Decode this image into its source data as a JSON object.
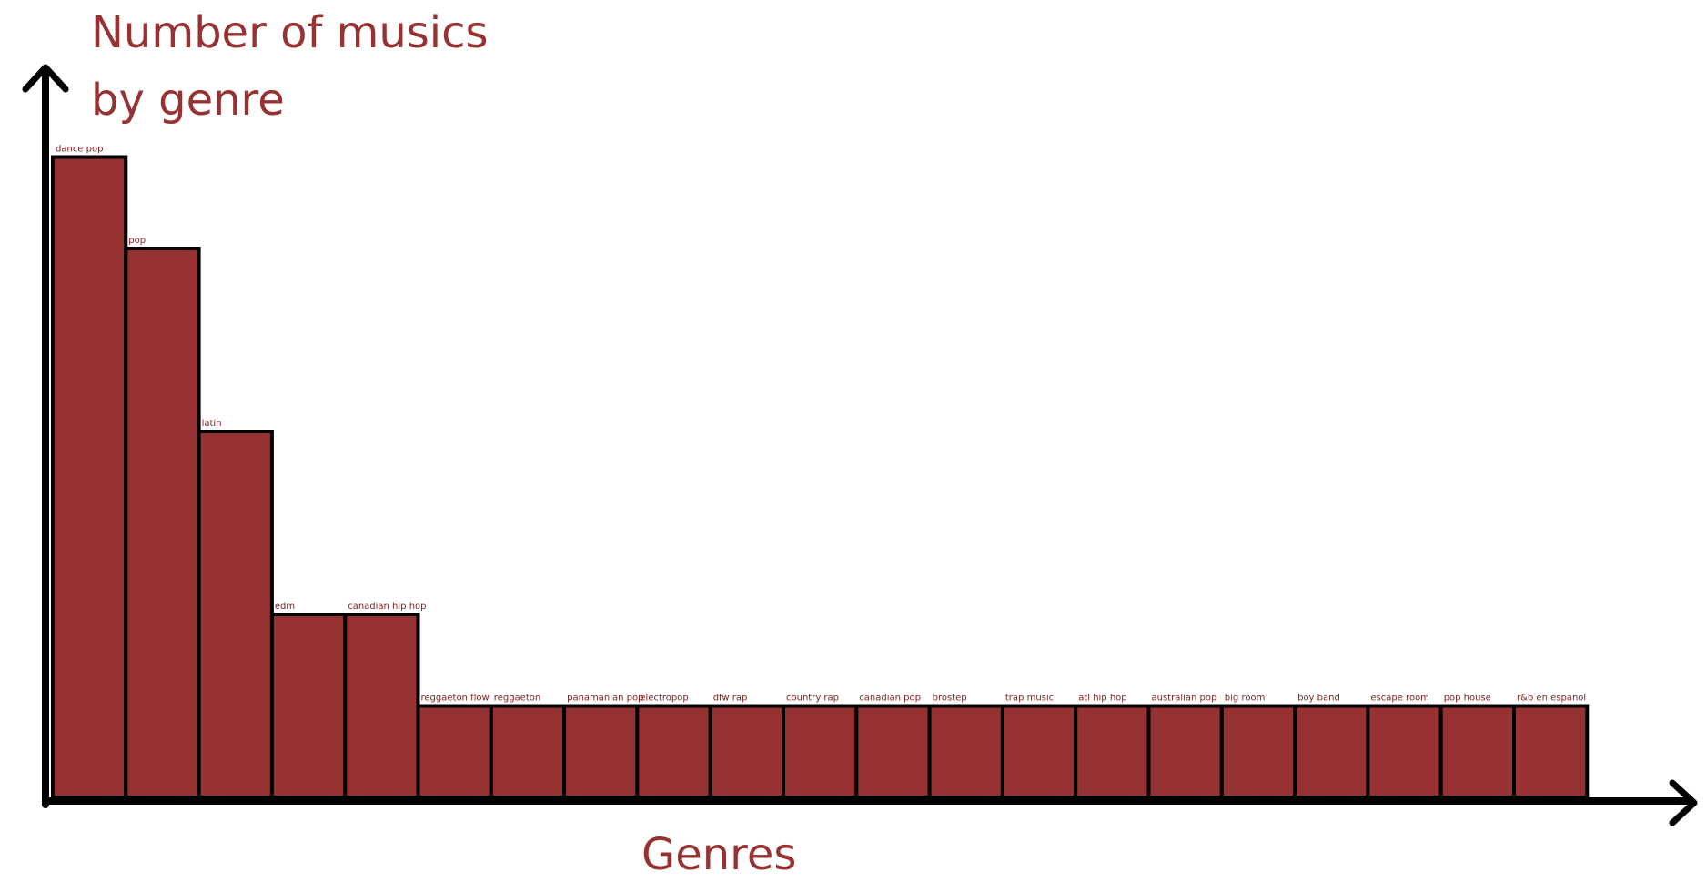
{
  "chart_data": {
    "type": "bar",
    "title_lines": [
      "Number of musics",
      "by genre"
    ],
    "xlabel": "Genres",
    "ylabel": "",
    "categories": [
      "dance pop",
      "pop",
      "latin",
      "edm",
      "canadian hip hop",
      "reggaeton flow",
      "reggaeton",
      "panamanian pop",
      "electropop",
      "dfw rap",
      "country rap",
      "canadian pop",
      "brostep",
      "trap music",
      "atl hip hop",
      "australian pop",
      "big room",
      "boy band",
      "escape room",
      "pop house",
      "r&b en espanol"
    ],
    "values": [
      7,
      6,
      4,
      2,
      2,
      1,
      1,
      1,
      1,
      1,
      1,
      1,
      1,
      1,
      1,
      1,
      1,
      1,
      1,
      1,
      1
    ],
    "ylim": [
      0,
      7
    ],
    "grid": false,
    "legend": "none",
    "colors": {
      "bar": "#963232",
      "bar_outline": "#000000",
      "text": "#963232",
      "bar_label": "#7a1f1f",
      "axis": "#000000"
    }
  }
}
